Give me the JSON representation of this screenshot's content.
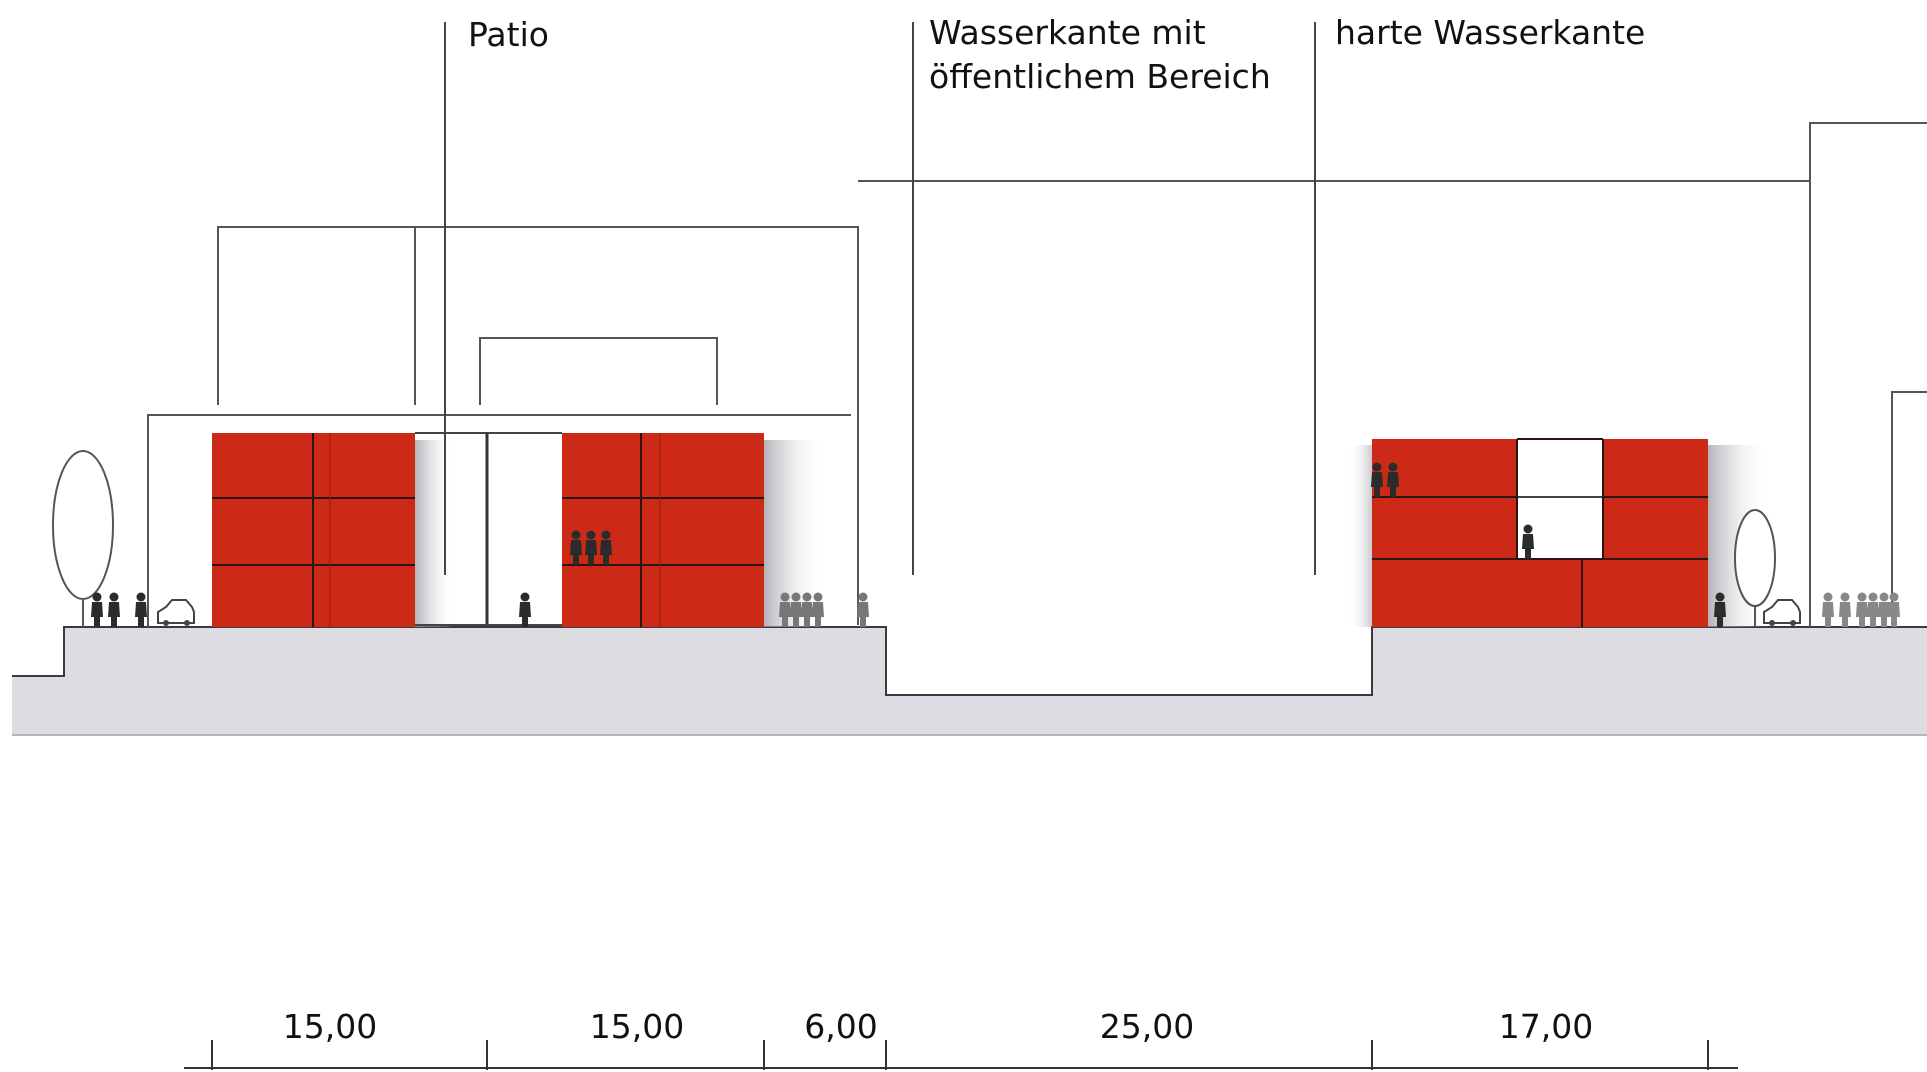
{
  "labels": {
    "patio": "Patio",
    "public_waterfront_line1": "Wasserkante mit",
    "public_waterfront_line2": "öffentlichem Bereich",
    "hard_waterfront": "harte Wasserkante"
  },
  "dimensions": {
    "d1": "15,00",
    "d2": "15,00",
    "d3": "6,00",
    "d4": "25,00",
    "d5": "17,00"
  },
  "colors": {
    "building": "#cc2a16",
    "ground": "#dcdce2",
    "shadow": "#bfbfc6",
    "lines": "#555555",
    "figures": "#2b2b2b"
  }
}
